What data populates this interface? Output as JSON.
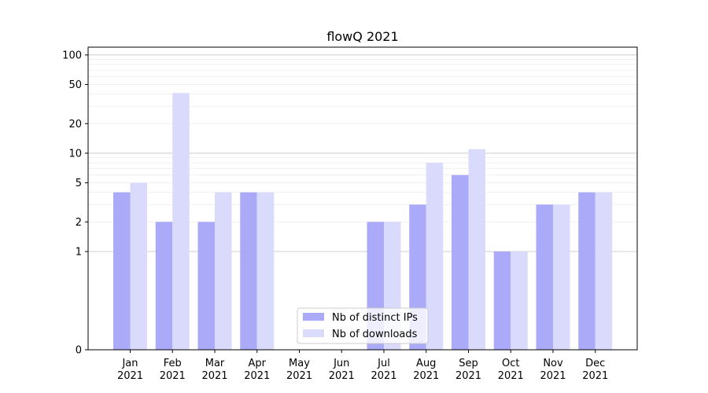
{
  "chart_data": {
    "type": "bar",
    "title": "flowQ 2021",
    "xlabel": "",
    "ylabel": "",
    "y_scale": "symlog",
    "ylim": [
      0,
      120
    ],
    "y_ticks": [
      0,
      1,
      2,
      5,
      10,
      20,
      50,
      100
    ],
    "grid": "horizontal",
    "legend_position": "bottom-center",
    "categories": [
      "Jan\n2021",
      "Feb\n2021",
      "Mar\n2021",
      "Apr\n2021",
      "May\n2021",
      "Jun\n2021",
      "Jul\n2021",
      "Aug\n2021",
      "Sep\n2021",
      "Oct\n2021",
      "Nov\n2021",
      "Dec\n2021"
    ],
    "series": [
      {
        "name": "Nb of distinct IPs",
        "color": "#aaaaf8",
        "values": [
          4,
          2,
          2,
          4,
          0,
          0,
          2,
          3,
          6,
          1,
          3,
          4
        ]
      },
      {
        "name": "Nb of downloads",
        "color": "#dadafc",
        "values": [
          5,
          41,
          4,
          4,
          0,
          0,
          2,
          8,
          11,
          1,
          3,
          4
        ]
      }
    ]
  }
}
